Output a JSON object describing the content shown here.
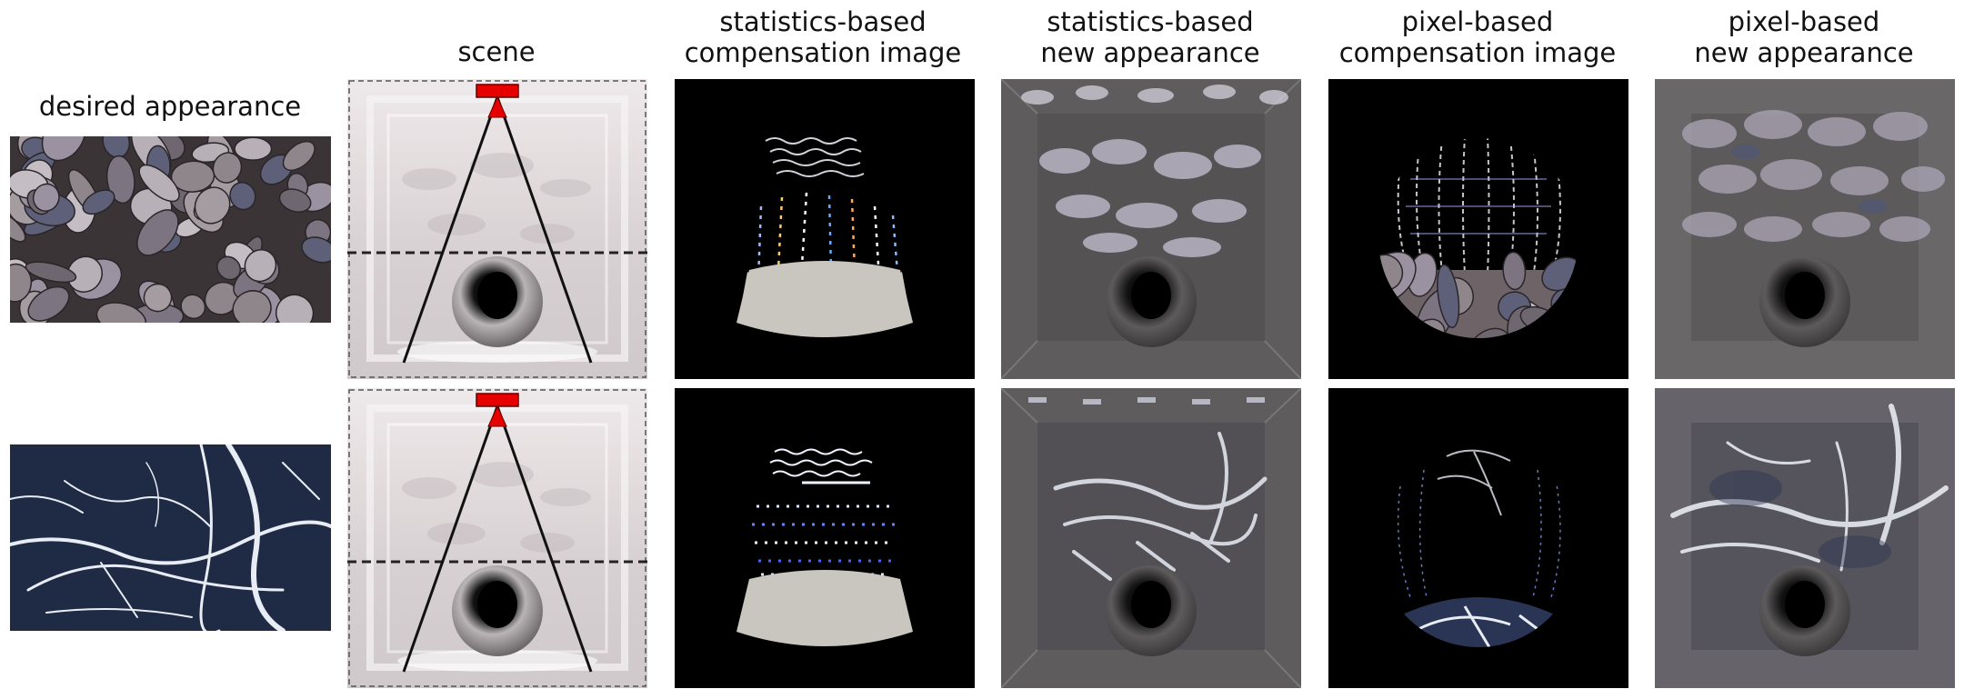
{
  "columns": [
    {
      "id": "desired",
      "title_line1": "",
      "title_line2": "desired appearance"
    },
    {
      "id": "scene",
      "title_line1": "",
      "title_line2": "scene"
    },
    {
      "id": "stat-comp",
      "title_line1": "statistics-based",
      "title_line2": "compensation image"
    },
    {
      "id": "stat-new",
      "title_line1": "statistics-based",
      "title_line2": "new appearance"
    },
    {
      "id": "pix-comp",
      "title_line1": "pixel-based",
      "title_line2": "compensation image"
    },
    {
      "id": "pix-new",
      "title_line1": "pixel-based",
      "title_line2": "new appearance"
    }
  ],
  "rows": [
    {
      "texture": "pebbles"
    },
    {
      "texture": "marble"
    }
  ],
  "colors": {
    "projector": "#e60000",
    "pebble": "#8a7f84",
    "marble_dark": "#1f2a44",
    "marble_vein": "#e8ecf4",
    "room_wall": "#d8d4d6",
    "new_wall": "#6a6769",
    "comp_bg": "#000000",
    "floor_patch": "#c9c6c0"
  }
}
